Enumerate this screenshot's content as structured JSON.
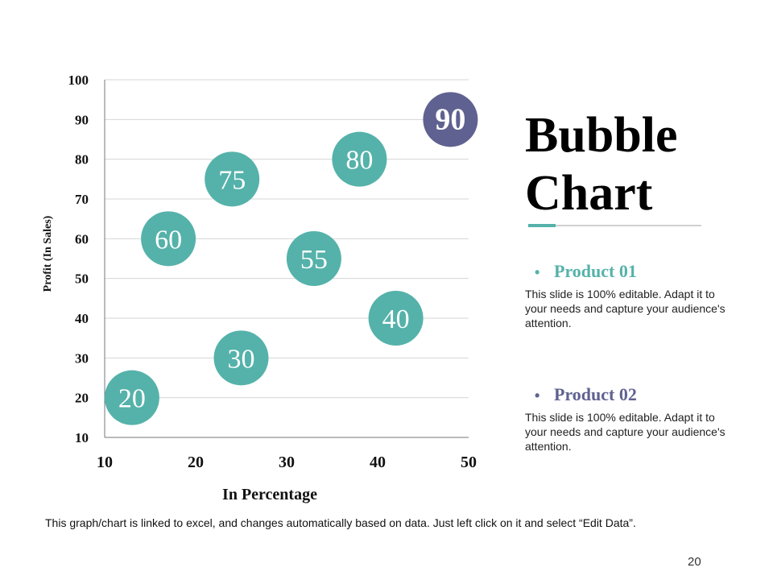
{
  "chart_data": {
    "type": "scatter",
    "variant": "bubble",
    "xlabel": "In Percentage",
    "ylabel": "Profit  (In Sales)",
    "xlim": [
      10,
      50
    ],
    "ylim": [
      10,
      100
    ],
    "x_ticks": [
      10,
      20,
      30,
      40,
      50
    ],
    "y_ticks": [
      10,
      20,
      30,
      40,
      50,
      60,
      70,
      80,
      90,
      100
    ],
    "grid": "horizontal",
    "points": [
      {
        "label": "20",
        "x": 13,
        "y": 20,
        "series": "Product 01"
      },
      {
        "label": "30",
        "x": 25,
        "y": 30,
        "series": "Product 01"
      },
      {
        "label": "40",
        "x": 42,
        "y": 40,
        "series": "Product 01"
      },
      {
        "label": "55",
        "x": 33,
        "y": 55,
        "series": "Product 01"
      },
      {
        "label": "60",
        "x": 17,
        "y": 60,
        "series": "Product 01"
      },
      {
        "label": "75",
        "x": 24,
        "y": 75,
        "series": "Product 01"
      },
      {
        "label": "80",
        "x": 38,
        "y": 80,
        "series": "Product 01"
      },
      {
        "label": "90",
        "x": 48,
        "y": 90,
        "series": "Product 02"
      }
    ]
  },
  "colors": {
    "product_01": "#55b2aa",
    "product_02": "#5f6290"
  },
  "title": {
    "line1": "Bubble",
    "line2": "Chart"
  },
  "products": [
    {
      "name": "Product 01",
      "bullet": "•",
      "body": "This slide is 100% editable.  Adapt it to your  needs and capture your audience's attention."
    },
    {
      "name": "Product 02",
      "bullet": "•",
      "body": "This slide is 100% editable.  Adapt it to your  needs and capture your audience's attention."
    }
  ],
  "footer_note": "This graph/chart is linked to excel, and changes automatically  based on data. Just left click on it and select “Edit Data”.",
  "page_number": "20"
}
